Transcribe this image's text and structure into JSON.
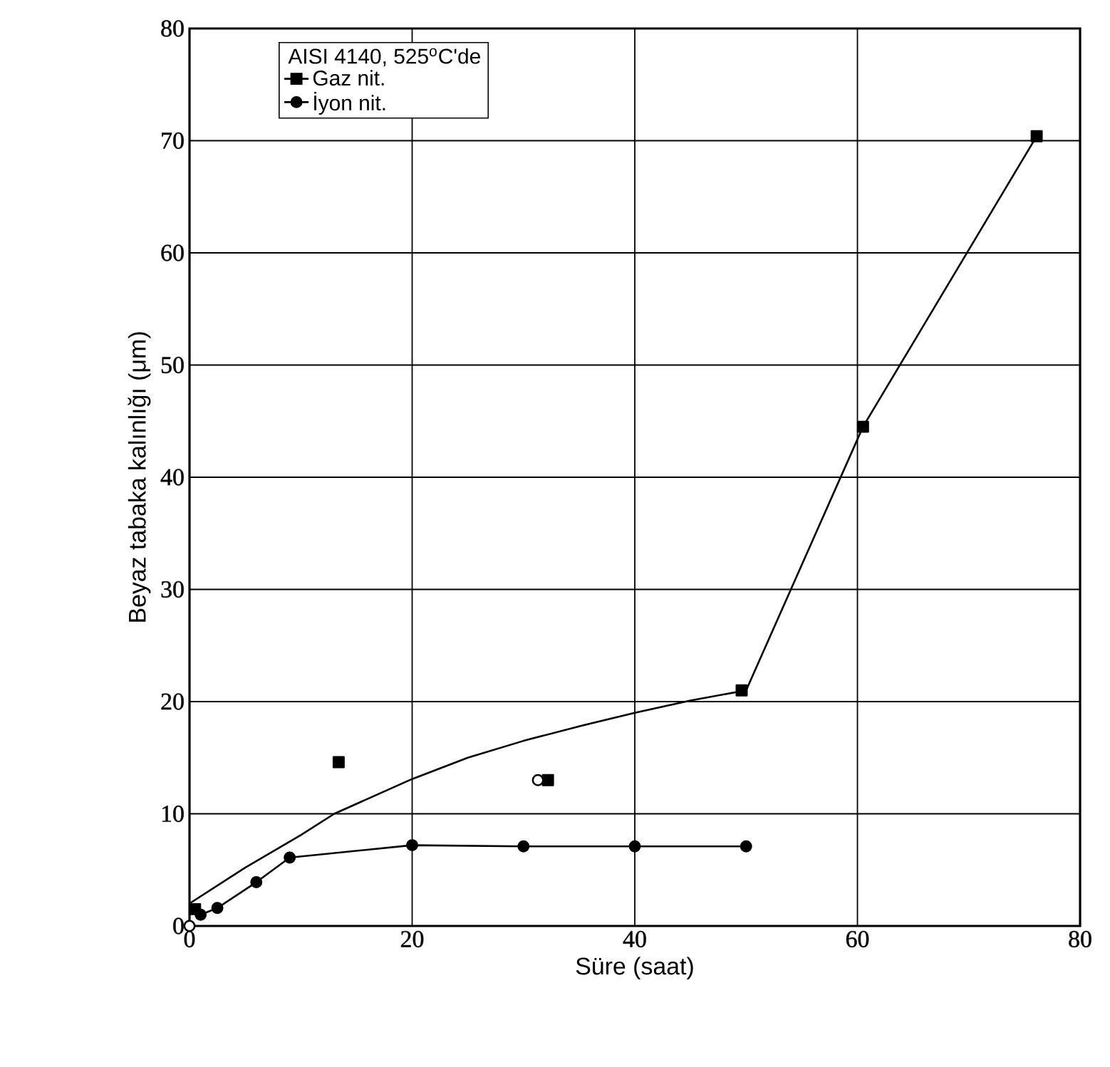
{
  "chart_data": {
    "type": "line",
    "xlabel": "Süre (saat)",
    "ylabel": "Beyaz tabaka kalınlığı (μm)",
    "legend_title": "AISI 4140, 525$^{o}$C'de",
    "xlim": [
      0,
      80
    ],
    "ylim": [
      0,
      80
    ],
    "xticks": [
      0,
      20,
      40,
      60,
      80
    ],
    "yticks": [
      0,
      10,
      20,
      30,
      40,
      50,
      60,
      70,
      80
    ],
    "grid": true,
    "legend": "top left",
    "series": [
      {
        "name": "Gaz nit.",
        "type": "scatter",
        "marker": "square",
        "color": "#000000",
        "x": [
          0.5,
          13.4,
          32.2,
          49.6,
          60.5,
          76.1
        ],
        "values": [
          1.5,
          14.6,
          13.0,
          21.0,
          44.5,
          70.4
        ]
      },
      {
        "name": "İyon nit.",
        "marker": "circle",
        "color": "#000000",
        "x": [
          1,
          2.5,
          6,
          9,
          20,
          30,
          40,
          50
        ],
        "values": [
          1.0,
          1.6,
          3.9,
          6.1,
          7.2,
          7.1,
          7.1,
          7.1
        ]
      },
      {
        "marker": "none",
        "color": "#000000",
        "x": [
          0,
          5,
          10,
          13,
          20,
          25,
          30,
          35,
          40,
          45,
          50,
          60.5,
          76.1
        ],
        "values": [
          2,
          5.2,
          8.1,
          10,
          13.1,
          15,
          16.5,
          17.8,
          19,
          20.1,
          21,
          44.5,
          70.4
        ]
      },
      {
        "type": "scatter",
        "marker": "circle",
        "color": "#ffffff",
        "x": [
          0,
          31.3
        ],
        "values": [
          0,
          13
        ]
      }
    ]
  }
}
